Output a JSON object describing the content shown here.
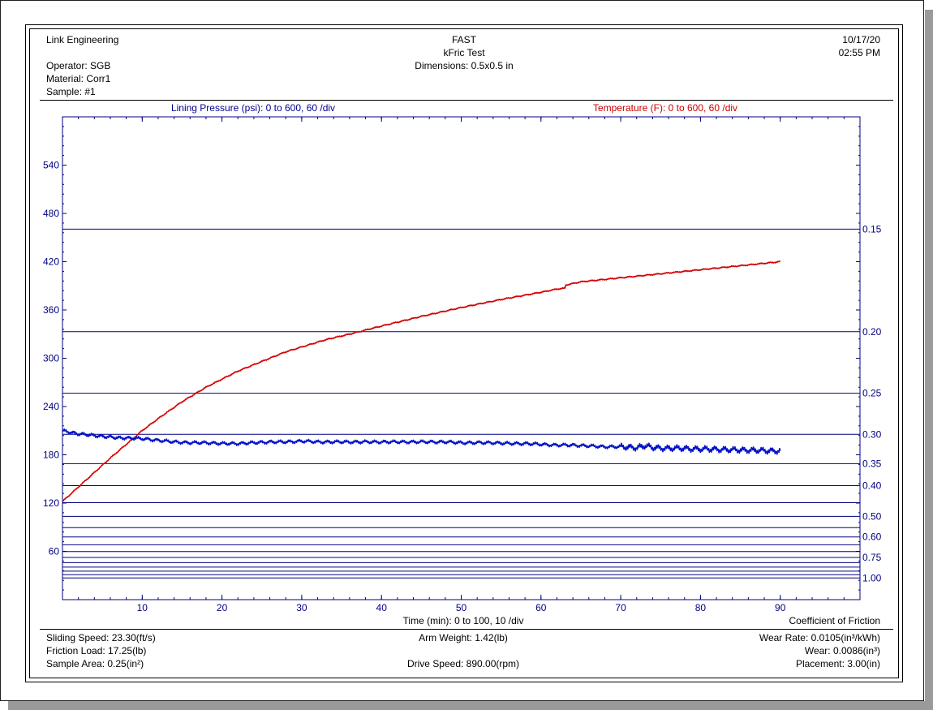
{
  "header": {
    "company": "Link Engineering",
    "operator": "Operator: SGB",
    "material": "Material: Corr1",
    "sample": "Sample: #1",
    "title": "FAST",
    "subtitle": "kFric Test",
    "dimensions": "Dimensions: 0.5x0.5 in",
    "date": "10/17/20",
    "time": "02:55 PM"
  },
  "footer": {
    "sliding_speed": "Sliding Speed: 23.30(ft/s)",
    "friction_load": "Friction Load: 17.25(lb)",
    "sample_area": "Sample Area:  0.25(in²)",
    "arm_weight": "Arm Weight: 1.42(lb)",
    "drive_speed": "Drive Speed: 890.00(rpm)",
    "wear_rate": "Wear Rate: 0.0105(in³/kWh)",
    "wear": "Wear: 0.0086(in³)",
    "placement": "Placement:  3.00(in)"
  },
  "chart_data": {
    "type": "line",
    "left_axis_label": "Lining Pressure (psi): 0 to 600, 60 /div",
    "right_axis_label": "Temperature (F): 0 to 600, 60 /div",
    "xlabel": "Time (min): 0 to 100, 10 /div",
    "right_scale_label": "Coefficient of Friction",
    "xlim": [
      0,
      100
    ],
    "ylim": [
      0,
      600
    ],
    "x_ticks": [
      "10",
      "20",
      "30",
      "40",
      "50",
      "60",
      "70",
      "80",
      "90"
    ],
    "x_tick_values": [
      10,
      20,
      30,
      40,
      50,
      60,
      70,
      80,
      90
    ],
    "y_ticks": [
      "60",
      "120",
      "180",
      "240",
      "300",
      "360",
      "420",
      "480",
      "540"
    ],
    "y_tick_values": [
      60,
      120,
      180,
      240,
      300,
      360,
      420,
      480,
      540
    ],
    "cof_labeled": [
      {
        "label": "0.15",
        "value": 0.15
      },
      {
        "label": "0.20",
        "value": 0.2
      },
      {
        "label": "0.25",
        "value": 0.25
      },
      {
        "label": "0.30",
        "value": 0.3
      },
      {
        "label": "0.35",
        "value": 0.35
      },
      {
        "label": "0.40",
        "value": 0.4
      },
      {
        "label": "0.50",
        "value": 0.5
      },
      {
        "label": "0.60",
        "value": 0.6
      },
      {
        "label": "0.75",
        "value": 0.75
      },
      {
        "label": "1.00",
        "value": 1.0
      }
    ],
    "cof_unlabeled": [
      0.45,
      0.55,
      0.65,
      0.7,
      0.8,
      0.85,
      0.9,
      0.95
    ],
    "colors": {
      "temperature": "#d40000",
      "pressure": "#0010c8",
      "axis": "#000080",
      "grid": "#000080"
    },
    "series": [
      {
        "key": "temperature",
        "x": [
          0,
          2,
          4,
          6,
          8,
          10,
          12,
          15,
          18,
          20,
          22,
          25,
          28,
          30,
          33,
          36,
          40,
          45,
          50,
          55,
          60,
          62,
          63,
          63.1,
          65,
          70,
          75,
          80,
          85,
          90
        ],
        "y": [
          122,
          140,
          158,
          176,
          193,
          210,
          225,
          246,
          264,
          274,
          284,
          296,
          308,
          314,
          323,
          330,
          340,
          352,
          363,
          373,
          382,
          386,
          387,
          391,
          395,
          400,
          405,
          410,
          415,
          420
        ]
      },
      {
        "key": "pressure",
        "x": [
          0,
          1,
          2,
          3,
          4,
          5,
          6,
          7,
          8,
          10,
          12,
          14,
          16,
          18,
          20,
          22,
          24,
          26,
          28,
          30,
          32,
          34,
          36,
          38,
          40,
          42,
          44,
          46,
          48,
          50,
          52,
          54,
          56,
          58,
          60,
          62,
          64,
          66,
          68,
          70,
          72,
          73,
          74,
          76,
          78,
          80,
          82,
          84,
          86,
          88,
          90
        ],
        "y": [
          210,
          208,
          206,
          205,
          204,
          203,
          202,
          201,
          201,
          200,
          198,
          196,
          195,
          195,
          194,
          194,
          195,
          196,
          196,
          197,
          196,
          196,
          196,
          196,
          196,
          196,
          196,
          196,
          196,
          195,
          195,
          195,
          194,
          194,
          193,
          192,
          192,
          191,
          190,
          190,
          189,
          191,
          189,
          188,
          188,
          187,
          187,
          186,
          186,
          185,
          185
        ]
      }
    ]
  }
}
